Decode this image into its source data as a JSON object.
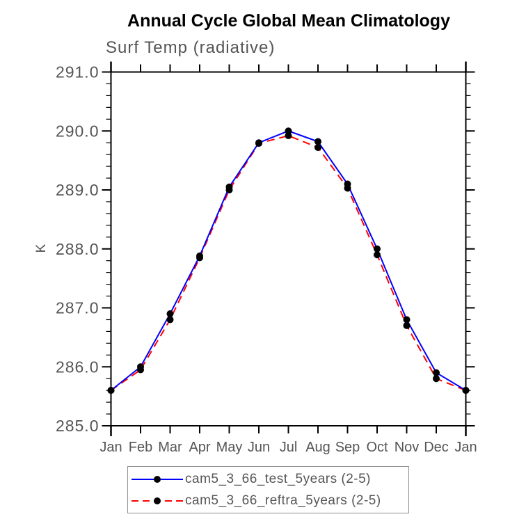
{
  "page": {
    "title": "Annual Cycle Global Mean Climatology",
    "subtitle": "Surf Temp (radiative)"
  },
  "chart_data": {
    "type": "line",
    "title": "Annual Cycle Global Mean Climatology",
    "subtitle": "Surf Temp (radiative)",
    "xlabel": "",
    "ylabel": "K",
    "categories": [
      "Jan",
      "Feb",
      "Mar",
      "Apr",
      "May",
      "Jun",
      "Jul",
      "Aug",
      "Sep",
      "Oct",
      "Nov",
      "Dec",
      "Jan"
    ],
    "ylim": [
      285.0,
      291.0
    ],
    "yticks": [
      285.0,
      286.0,
      287.0,
      288.0,
      289.0,
      290.0,
      291.0
    ],
    "ytick_format": "one-decimal",
    "minor_tick_interval": 0.2,
    "grid": false,
    "legend_position": "bottom",
    "axis_color": "#000000",
    "tick_label_color": "#555555",
    "series": [
      {
        "name": "cam5_3_66_test_5years (2-5)",
        "color": "#0000ff",
        "line_style": "solid",
        "marker": "filled-circle",
        "marker_color": "#000000",
        "values": [
          285.6,
          286.0,
          286.9,
          287.88,
          289.05,
          289.8,
          290.0,
          289.82,
          289.1,
          288.0,
          286.8,
          285.9,
          285.6
        ]
      },
      {
        "name": "cam5_3_66_reftra_5years (2-5)",
        "color": "#ff0000",
        "line_style": "dashed",
        "marker": "filled-circle",
        "marker_color": "#000000",
        "values": [
          285.6,
          285.95,
          286.8,
          287.85,
          289.0,
          289.79,
          289.92,
          289.72,
          289.03,
          287.9,
          286.7,
          285.8,
          285.6
        ]
      }
    ]
  }
}
